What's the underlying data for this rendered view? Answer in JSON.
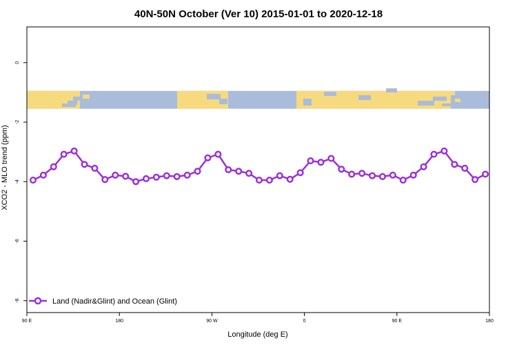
{
  "chart_data": {
    "type": "line",
    "title": "40N-50N October (Ver 10)   2015-01-01 to 2020-12-18",
    "xlabel": "Longitude (deg E)",
    "ylabel": "XCO2 - MLO trend (ppm)",
    "xlim": [
      90,
      540
    ],
    "ylim": [
      -8.4,
      1.2
    ],
    "x_ticks": [
      {
        "value": 90,
        "label": "90 E"
      },
      {
        "value": 180,
        "label": "180"
      },
      {
        "value": 270,
        "label": "90 W"
      },
      {
        "value": 360,
        "label": "0"
      },
      {
        "value": 450,
        "label": "90 E"
      },
      {
        "value": 540,
        "label": "180"
      }
    ],
    "y_ticks": [
      {
        "value": 0,
        "label": "0"
      },
      {
        "value": -2,
        "label": "-2"
      },
      {
        "value": -4,
        "label": "-4"
      },
      {
        "value": -6,
        "label": "-6"
      },
      {
        "value": -8,
        "label": "-8"
      }
    ],
    "grid": false,
    "legend_position": "bottom-left",
    "map_strip": {
      "y_top": -0.95,
      "y_bottom": -1.55,
      "ocean_color": "#a9bcdc",
      "land_color": "#f7da7d"
    },
    "series": [
      {
        "name": "Land (Nadir&Glint) and Ocean (Glint)",
        "color": "#9b30d9",
        "x": [
          96,
          106,
          116,
          126,
          136,
          146,
          156,
          166,
          176,
          186,
          196,
          206,
          216,
          226,
          236,
          246,
          256,
          266,
          276,
          286,
          296,
          306,
          316,
          326,
          336,
          346,
          356,
          366,
          376,
          386,
          396,
          406,
          416,
          426,
          436,
          446,
          456,
          466,
          476,
          486,
          496,
          506,
          516,
          526,
          536
        ],
        "y": [
          -3.95,
          -3.78,
          -3.5,
          -3.08,
          -2.97,
          -3.42,
          -3.55,
          -3.93,
          -3.78,
          -3.82,
          -4.0,
          -3.9,
          -3.85,
          -3.8,
          -3.83,
          -3.78,
          -3.65,
          -3.2,
          -3.08,
          -3.6,
          -3.65,
          -3.72,
          -3.95,
          -3.95,
          -3.8,
          -3.92,
          -3.7,
          -3.3,
          -3.35,
          -3.22,
          -3.58,
          -3.75,
          -3.72,
          -3.8,
          -3.83,
          -3.78,
          -3.95,
          -3.78,
          -3.5,
          -3.08,
          -2.97,
          -3.42,
          -3.55,
          -3.93,
          -3.75
        ]
      }
    ]
  }
}
